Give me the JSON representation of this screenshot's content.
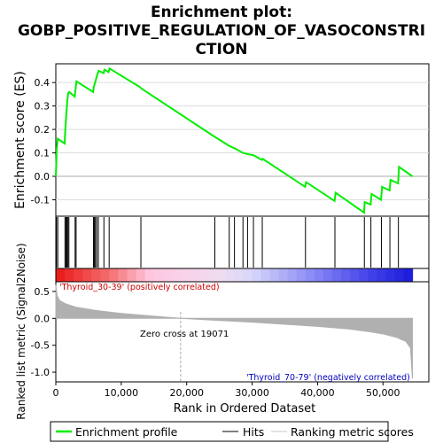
{
  "title_lines": [
    "Enrichment plot:",
    "GOBP_POSITIVE_REGULATION_OF_VASOCONSTRI",
    "CTION"
  ],
  "colors": {
    "profile": "#00ee00",
    "hit": "#000000",
    "metric": "#b0b0b0",
    "zero_line": "#c0c0c0",
    "pos_label": "#cc0000",
    "neg_label": "#0000bb"
  },
  "chart_data": [
    {
      "type": "line",
      "ylabel": "Enrichment score (ES)",
      "xlim": [
        0,
        57000
      ],
      "ylim": [
        -0.17,
        0.48
      ],
      "yticks": [
        -0.1,
        0.0,
        0.1,
        0.2,
        0.3,
        0.4
      ],
      "ytick_labels": [
        "-0.1",
        "0.0",
        "0.1",
        "0.2",
        "0.3",
        "0.4"
      ],
      "series": [
        {
          "name": "Enrichment profile",
          "x": [
            0,
            150,
            300,
            1350,
            1450,
            1600,
            1750,
            1900,
            2050,
            2900,
            3000,
            3150,
            5700,
            5800,
            5950,
            6100,
            6300,
            6550,
            7300,
            7450,
            8050,
            8200,
            12900,
            13050,
            24200,
            26500,
            27300,
            28600,
            29300,
            30200,
            31500,
            31600,
            38100,
            38250,
            42600,
            42750,
            47100,
            47200,
            48100,
            48250,
            49700,
            49850,
            51000,
            51150,
            52300,
            52450,
            54500
          ],
          "y": [
            0.0,
            0.12,
            0.16,
            0.14,
            0.2,
            0.26,
            0.32,
            0.355,
            0.36,
            0.34,
            0.37,
            0.405,
            0.36,
            0.38,
            0.395,
            0.41,
            0.43,
            0.45,
            0.44,
            0.455,
            0.445,
            0.46,
            0.38,
            0.375,
            0.17,
            0.13,
            0.12,
            0.1,
            0.095,
            0.09,
            0.07,
            0.075,
            -0.045,
            -0.025,
            -0.105,
            -0.07,
            -0.155,
            -0.11,
            -0.12,
            -0.075,
            -0.1,
            -0.045,
            -0.06,
            -0.015,
            -0.03,
            0.04,
            0.0
          ]
        }
      ]
    },
    {
      "type": "scatter",
      "name": "Hits",
      "x": [
        100,
        300,
        1400,
        1550,
        1700,
        1850,
        2000,
        2950,
        3100,
        5750,
        5900,
        6050,
        6250,
        6500,
        7350,
        8150,
        13000,
        24300,
        26500,
        27300,
        28600,
        29300,
        30200,
        31550,
        38150,
        42650,
        47150,
        48150,
        49750,
        51050,
        52350
      ]
    },
    {
      "type": "area",
      "ylabel": "Ranked list metric (Signal2Noise)",
      "xlabel": "Rank in Ordered Dataset",
      "xlim": [
        0,
        57000
      ],
      "ylim": [
        -1.18,
        0.68
      ],
      "xticks": [
        0,
        10000,
        20000,
        30000,
        40000,
        50000
      ],
      "xtick_labels": [
        "0",
        "10,000",
        "20,000",
        "30,000",
        "40,000",
        "50,000"
      ],
      "yticks": [
        -1.0,
        -0.5,
        0.0,
        0.5
      ],
      "ytick_labels": [
        "-1.0",
        "-0.5",
        "0.0",
        "0.5"
      ],
      "series": [
        {
          "name": "Ranking metric scores",
          "x": [
            0,
            200,
            600,
            1500,
            3000,
            6000,
            10000,
            15000,
            19071,
            25000,
            30000,
            35000,
            40000,
            45000,
            48000,
            50000,
            52000,
            53500,
            54200,
            54500
          ],
          "y": [
            0.62,
            0.42,
            0.33,
            0.27,
            0.21,
            0.15,
            0.09,
            0.04,
            0.0,
            -0.04,
            -0.07,
            -0.11,
            -0.15,
            -0.2,
            -0.25,
            -0.29,
            -0.35,
            -0.43,
            -0.55,
            -1.12
          ]
        }
      ],
      "annotations": {
        "zero_cross": "Zero cross at 19071",
        "pos_label": "'Thyroid_30-39' (positively correlated)",
        "neg_label": "'Thyroid_70-79' (negatively correlated)"
      }
    }
  ],
  "legend": [
    "Enrichment profile",
    "Hits",
    "Ranking metric scores"
  ]
}
